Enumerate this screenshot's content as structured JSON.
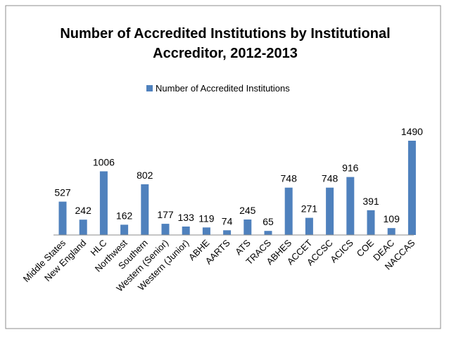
{
  "chart_data": {
    "type": "bar",
    "title_lines": [
      "Number of Accredited Institutions by Institutional",
      "Accreditor, 2012-2013"
    ],
    "categories": [
      "Middle States",
      "New England",
      "HLC",
      "Northwest",
      "Southern",
      "Western (Senior)",
      "Western (Junior)",
      "ABHE",
      "AARTS",
      "ATS",
      "TRACS",
      "ABHES",
      "ACCET",
      "ACCSC",
      "ACICS",
      "COE",
      "DEAC",
      "NACCAS"
    ],
    "series": [
      {
        "name": "Number of Accredited Institutions",
        "color": "#4f81bd",
        "values": [
          527,
          242,
          1006,
          162,
          802,
          177,
          133,
          119,
          74,
          245,
          65,
          748,
          271,
          748,
          916,
          391,
          109,
          1490
        ]
      }
    ],
    "ylim": [
      0,
      1490
    ],
    "legend_position": "top",
    "grid": false,
    "xlabel": "",
    "ylabel": ""
  }
}
